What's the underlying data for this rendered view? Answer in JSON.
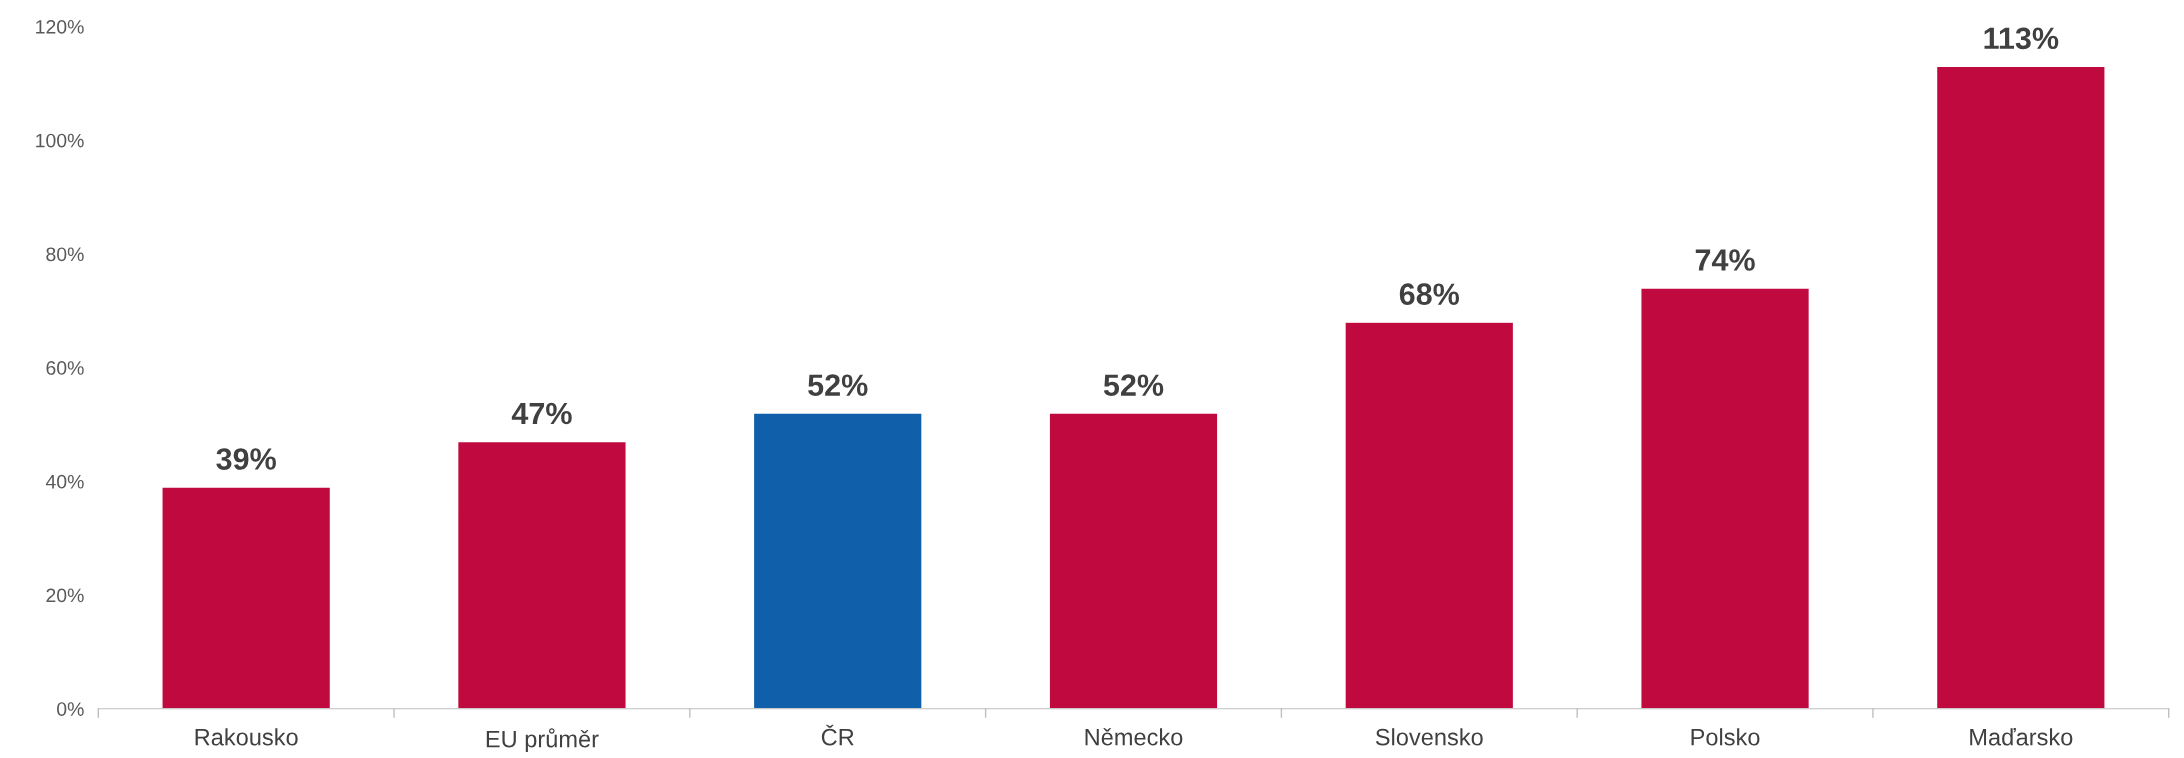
{
  "chart_data": {
    "type": "bar",
    "categories": [
      "Rakousko",
      "EU průměr",
      "ČR",
      "Německo",
      "Slovensko",
      "Polsko",
      "Maďarsko"
    ],
    "values": [
      39,
      47,
      52,
      52,
      68,
      74,
      113
    ],
    "colors": [
      "#c00a3f",
      "#c00a3f",
      "#0f5fab",
      "#c00a3f",
      "#c00a3f",
      "#c00a3f",
      "#c00a3f"
    ],
    "value_labels": [
      "39%",
      "47%",
      "52%",
      "52%",
      "68%",
      "74%",
      "113%"
    ],
    "ylim": [
      0,
      120
    ],
    "yticks": [
      {
        "value": 0,
        "label": "0%"
      },
      {
        "value": 20,
        "label": "20%"
      },
      {
        "value": 40,
        "label": "40%"
      },
      {
        "value": 60,
        "label": "60%"
      },
      {
        "value": 80,
        "label": "80%"
      },
      {
        "value": 100,
        "label": "100%"
      },
      {
        "value": 120,
        "label": "120%"
      }
    ],
    "grid": false,
    "legend": false
  }
}
